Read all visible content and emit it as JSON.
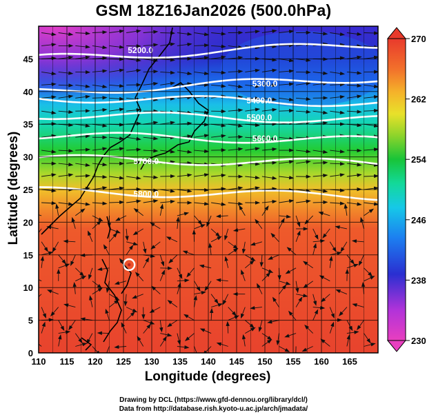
{
  "title": "GSM 18Z16Jan2026 (500.0hPa)",
  "axes": {
    "xlabel": "Longitude (degrees)",
    "ylabel": "Latitude  (degrees)",
    "x_range": [
      110,
      170
    ],
    "y_range": [
      0,
      50
    ],
    "x_ticks": [
      "110",
      "115",
      "120",
      "125",
      "130",
      "135",
      "140",
      "145",
      "150",
      "155",
      "160",
      "165"
    ],
    "y_ticks": [
      "0",
      "5",
      "10",
      "15",
      "20",
      "25",
      "30",
      "35",
      "40",
      "45"
    ]
  },
  "colorbar": {
    "ticks": [
      "230",
      "238",
      "246",
      "254",
      "262",
      "270"
    ],
    "min": 230,
    "max": 270,
    "colors": [
      "#e83fbf",
      "#b233d9",
      "#2a2fd1",
      "#1c7ff0",
      "#16c8e8",
      "#13d99a",
      "#18c438",
      "#8fd42b",
      "#e8e12a",
      "#f5b42a",
      "#f2702b",
      "#e83a2c"
    ]
  },
  "contours": [
    {
      "label": "5200.0",
      "label_lon": 128,
      "label_lat": 46.3
    },
    {
      "label": "5300.0",
      "label_lon": 150,
      "label_lat": 41.2
    },
    {
      "label": "5400.0",
      "label_lon": 149,
      "label_lat": 38.6
    },
    {
      "label": "5500.0",
      "label_lon": 149,
      "label_lat": 36.0
    },
    {
      "label": "5600.0",
      "label_lon": 150,
      "label_lat": 32.8
    },
    {
      "label": "5700.0",
      "label_lon": 129,
      "label_lat": 29.3
    },
    {
      "label": "5800.0",
      "label_lon": 129,
      "label_lat": 24.3
    }
  ],
  "marker": {
    "name": "typhoon-center",
    "lon": 126,
    "lat": 13.5
  },
  "credits": {
    "line1": "Drawing by DCL (https://www.gfd-dennou.org/library/dcl/)",
    "line2": "Data from http://database.rish.kyoto-u.ac.jp/arch/jmadata/"
  }
}
